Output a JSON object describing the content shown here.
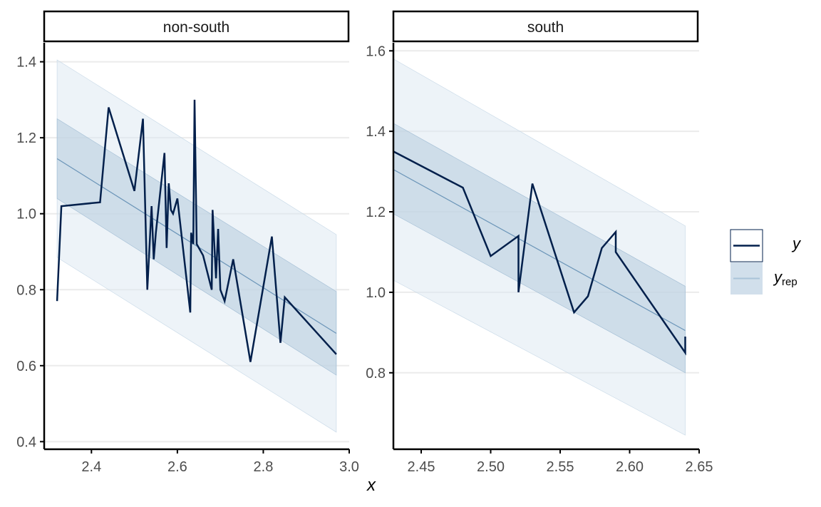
{
  "colors": {
    "y_line": "#011f4b",
    "yrep_line": "#6b95b8",
    "band_outer": "#dce7f1",
    "band_inner": "#b9cfe0",
    "grid": "#ebebeb",
    "axis": "#000000"
  },
  "x_axis_title": "x",
  "legend": {
    "y_label": "y",
    "yrep_label": "y",
    "yrep_sub": "rep"
  },
  "chart_data": [
    {
      "type": "line",
      "panel": "non-south",
      "strip_label": "non-south",
      "xlim": [
        2.29,
        3.0
      ],
      "ylim": [
        0.38,
        1.45
      ],
      "x_ticks": [
        2.4,
        2.6,
        2.8,
        3.0
      ],
      "x_tick_labels": [
        "2.4",
        "2.6",
        "2.8",
        "3.0"
      ],
      "y_ticks": [
        0.4,
        0.6,
        0.8,
        1.0,
        1.2,
        1.4
      ],
      "y_tick_labels": [
        "0.4",
        "0.6",
        "0.8",
        "1.0",
        "1.2",
        "1.4"
      ],
      "grid": true,
      "y_series": {
        "name": "y",
        "x": [
          2.32,
          2.33,
          2.42,
          2.44,
          2.5,
          2.52,
          2.53,
          2.54,
          2.545,
          2.55,
          2.57,
          2.575,
          2.58,
          2.585,
          2.59,
          2.6,
          2.63,
          2.632,
          2.637,
          2.64,
          2.645,
          2.66,
          2.68,
          2.682,
          2.69,
          2.695,
          2.7,
          2.71,
          2.73,
          2.77,
          2.82,
          2.84,
          2.85,
          2.97
        ],
        "y": [
          0.77,
          1.02,
          1.03,
          1.28,
          1.06,
          1.25,
          0.8,
          1.02,
          0.88,
          0.95,
          1.16,
          0.91,
          1.08,
          1.01,
          1.0,
          1.04,
          0.74,
          0.95,
          0.92,
          1.3,
          0.92,
          0.89,
          0.8,
          1.01,
          0.83,
          0.96,
          0.8,
          0.77,
          0.88,
          0.61,
          0.94,
          0.66,
          0.78,
          0.63
        ]
      },
      "yrep_series": {
        "name": "y_rep",
        "x": [
          2.32,
          2.97
        ],
        "median": [
          1.145,
          0.685
        ],
        "inner_lower": [
          1.04,
          0.575
        ],
        "inner_upper": [
          1.25,
          0.795
        ],
        "outer_lower": [
          0.885,
          0.425
        ],
        "outer_upper": [
          1.405,
          0.945
        ]
      }
    },
    {
      "type": "line",
      "panel": "south",
      "strip_label": "south",
      "xlim": [
        2.43,
        2.65
      ],
      "ylim": [
        0.61,
        1.62
      ],
      "x_ticks": [
        2.45,
        2.5,
        2.55,
        2.6,
        2.65
      ],
      "x_tick_labels": [
        "2.45",
        "2.50",
        "2.55",
        "2.60",
        "2.65"
      ],
      "y_ticks": [
        0.8,
        1.0,
        1.2,
        1.4,
        1.6
      ],
      "y_tick_labels": [
        "0.8",
        "1.0",
        "1.2",
        "1.4",
        "1.6"
      ],
      "grid": true,
      "y_series": {
        "name": "y",
        "x": [
          2.43,
          2.48,
          2.5,
          2.52,
          2.52,
          2.53,
          2.56,
          2.57,
          2.58,
          2.59,
          2.59,
          2.64,
          2.64
        ],
        "y": [
          1.35,
          1.26,
          1.09,
          1.14,
          1.0,
          1.27,
          0.95,
          0.99,
          1.11,
          1.15,
          1.1,
          0.85,
          0.89
        ]
      },
      "yrep_series": {
        "name": "y_rep",
        "x": [
          2.43,
          2.64
        ],
        "median": [
          1.305,
          0.905
        ],
        "inner_lower": [
          1.195,
          0.8
        ],
        "inner_upper": [
          1.42,
          1.015
        ],
        "outer_lower": [
          1.03,
          0.645
        ],
        "outer_upper": [
          1.58,
          1.165
        ]
      }
    }
  ]
}
